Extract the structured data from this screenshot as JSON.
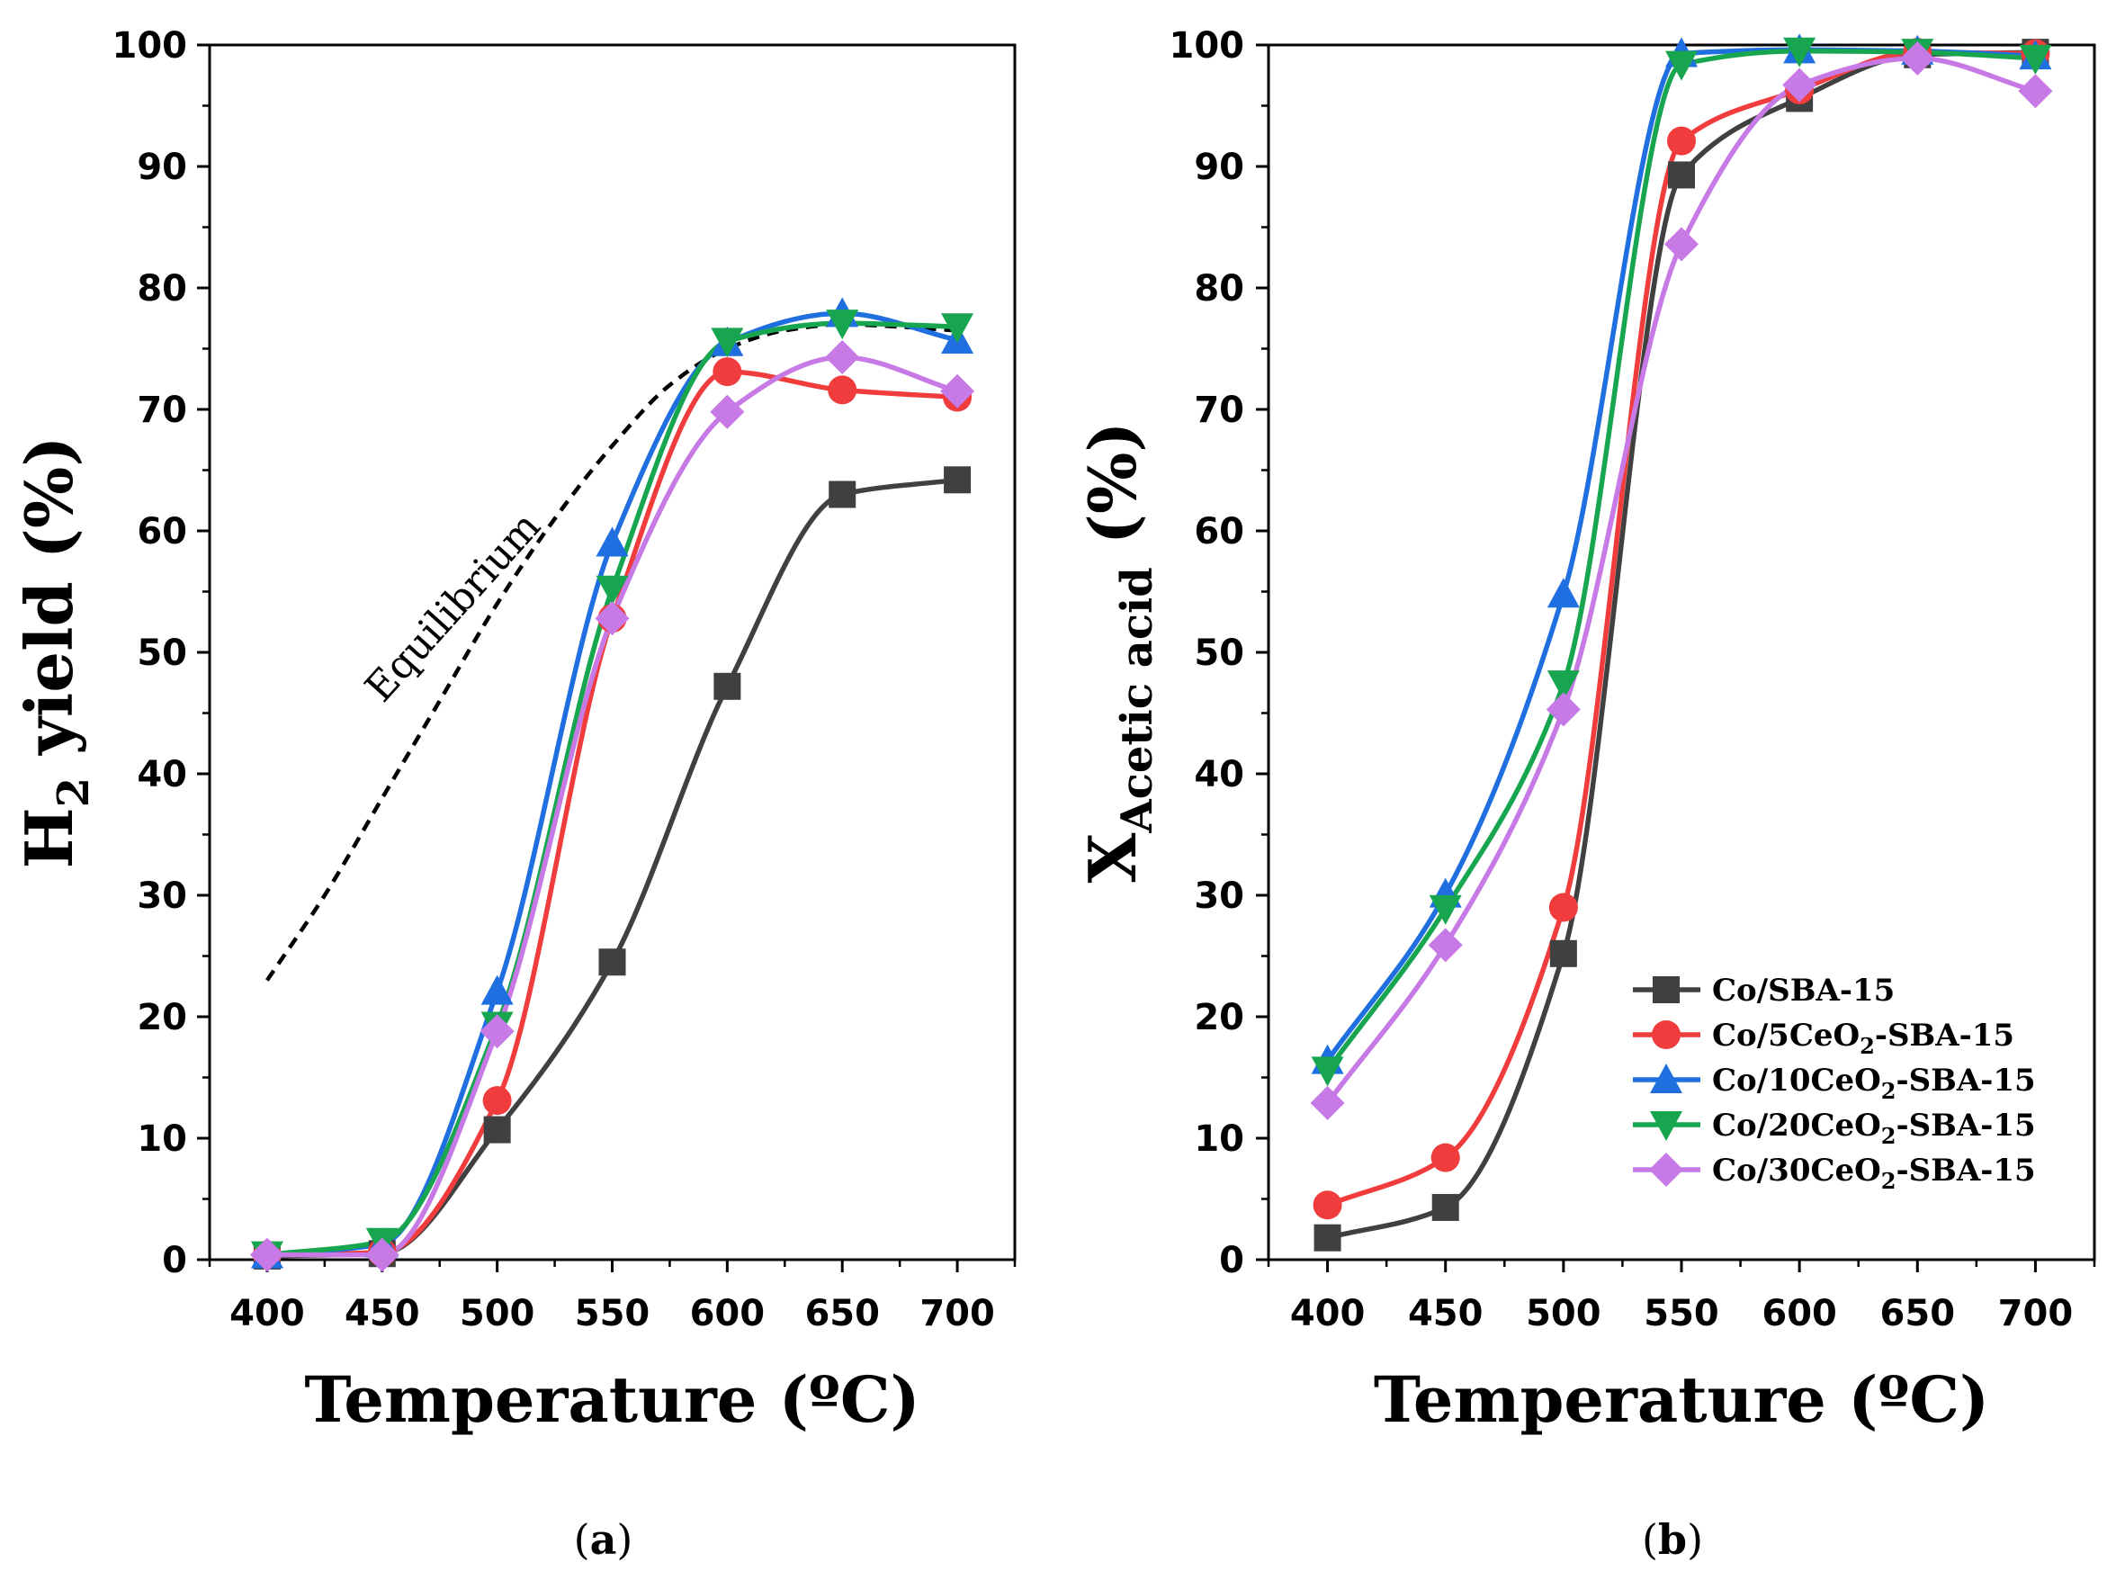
{
  "colors": {
    "Co/SBA-15": "#404040",
    "Co/5CeO2-SBA-15": "#f03c3c",
    "Co/10CeO2-SBA-15": "#1f6fe0",
    "Co/20CeO2-SBA-15": "#17a64f",
    "Co/30CeO2-SBA-15": "#c77ae6",
    "equilibrium": "#000000"
  },
  "chart_data": [
    {
      "type": "line",
      "panel_label": "(a)",
      "panel_letter": "a",
      "xlabel": "Temperature (ºC)",
      "ylabel_main": "H",
      "ylabel_sub": "2",
      "ylabel_rest": " yield (%)",
      "xlim": [
        375,
        725
      ],
      "ylim": [
        0,
        100
      ],
      "x_ticks": [
        400,
        450,
        500,
        550,
        600,
        650,
        700
      ],
      "y_ticks": [
        0,
        10,
        20,
        30,
        40,
        50,
        60,
        70,
        80,
        90,
        100
      ],
      "x": [
        400,
        450,
        500,
        550,
        600,
        650,
        700
      ],
      "series": [
        {
          "name": "Co/SBA-15",
          "marker": "square",
          "values": [
            0.3,
            0.5,
            10.7,
            24.5,
            47.2,
            63.0,
            64.2
          ]
        },
        {
          "name": "Co/5CeO2-SBA-15",
          "marker": "circle",
          "values": [
            0.4,
            0.6,
            13.1,
            52.8,
            73.1,
            71.6,
            71.0
          ]
        },
        {
          "name": "Co/10CeO2-SBA-15",
          "marker": "triangle-up",
          "values": [
            0.4,
            1.3,
            22.1,
            59.0,
            75.5,
            77.9,
            75.7
          ]
        },
        {
          "name": "Co/20CeO2-SBA-15",
          "marker": "triangle-down",
          "values": [
            0.4,
            1.5,
            19.3,
            55.2,
            75.6,
            77.1,
            76.8
          ]
        },
        {
          "name": "Co/30CeO2-SBA-15",
          "marker": "diamond",
          "values": [
            0.4,
            0.4,
            18.8,
            52.8,
            69.8,
            74.3,
            71.5
          ]
        }
      ],
      "reference_curve": {
        "name": "Equilibrium",
        "x": [
          400,
          425,
          450,
          475,
          500,
          525,
          550,
          575,
          600,
          625,
          650,
          675,
          700
        ],
        "values": [
          23,
          30,
          38,
          46,
          54,
          61,
          67,
          72,
          75,
          76.5,
          77,
          76.8,
          76.5
        ]
      },
      "annotation": "Equilibrium"
    },
    {
      "type": "line",
      "panel_label": "(b)",
      "panel_letter": "b",
      "xlabel": "Temperature (ºC)",
      "ylabel_main": "X",
      "ylabel_sub": "Acetic acid",
      "ylabel_rest": " (%)",
      "xlim": [
        375,
        725
      ],
      "ylim": [
        0,
        100
      ],
      "x_ticks": [
        400,
        450,
        500,
        550,
        600,
        650,
        700
      ],
      "y_ticks": [
        0,
        10,
        20,
        30,
        40,
        50,
        60,
        70,
        80,
        90,
        100
      ],
      "x": [
        400,
        450,
        500,
        550,
        600,
        650,
        700
      ],
      "series": [
        {
          "name": "Co/SBA-15",
          "marker": "square",
          "values": [
            1.8,
            4.3,
            25.2,
            89.3,
            95.6,
            99.2,
            99.4
          ]
        },
        {
          "name": "Co/5CeO2-SBA-15",
          "marker": "circle",
          "values": [
            4.5,
            8.4,
            29.0,
            92.1,
            96.3,
            99.4,
            99.3
          ]
        },
        {
          "name": "Co/10CeO2-SBA-15",
          "marker": "triangle-up",
          "values": [
            16.4,
            30.1,
            54.8,
            99.3,
            99.6,
            99.5,
            99.1
          ]
        },
        {
          "name": "Co/20CeO2-SBA-15",
          "marker": "triangle-down",
          "values": [
            15.6,
            28.9,
            47.4,
            98.4,
            99.5,
            99.4,
            98.9
          ]
        },
        {
          "name": "Co/30CeO2-SBA-15",
          "marker": "diamond",
          "values": [
            12.9,
            25.9,
            45.3,
            83.6,
            96.7,
            98.9,
            96.2
          ]
        }
      ],
      "legend_position": "bottom-right"
    }
  ],
  "legend": [
    {
      "series": "Co/SBA-15",
      "prefix": "Co/SBA-15",
      "sub": "",
      "suffix": ""
    },
    {
      "series": "Co/5CeO2-SBA-15",
      "prefix": "Co/5CeO",
      "sub": "2",
      "suffix": "-SBA-15"
    },
    {
      "series": "Co/10CeO2-SBA-15",
      "prefix": "Co/10CeO",
      "sub": "2",
      "suffix": "-SBA-15"
    },
    {
      "series": "Co/20CeO2-SBA-15",
      "prefix": "Co/20CeO",
      "sub": "2",
      "suffix": "-SBA-15"
    },
    {
      "series": "Co/30CeO2-SBA-15",
      "prefix": "Co/30CeO",
      "sub": "2",
      "suffix": "-SBA-15"
    }
  ]
}
